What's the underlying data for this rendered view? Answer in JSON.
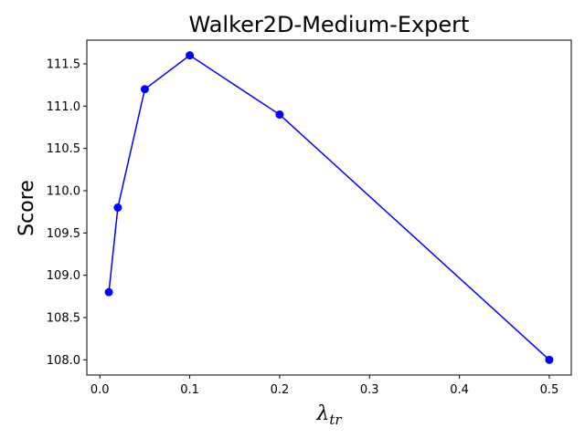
{
  "chart_data": {
    "type": "line",
    "title": "Walker2D-Medium-Expert",
    "xlabel": {
      "base": "λ",
      "sub": "tr"
    },
    "ylabel": "Score",
    "x": [
      0.01,
      0.02,
      0.05,
      0.1,
      0.2,
      0.5
    ],
    "series": [
      {
        "values": [
          108.8,
          109.8,
          111.2,
          111.6,
          110.9,
          108.0
        ],
        "color": "#0000ff",
        "marker": "circle"
      }
    ],
    "xlim": [
      -0.0145,
      0.5245
    ],
    "ylim": [
      107.82,
      111.78
    ],
    "xticks": [
      0.0,
      0.1,
      0.2,
      0.3,
      0.4,
      0.5
    ],
    "xtick_labels": [
      "0.0",
      "0.1",
      "0.2",
      "0.3",
      "0.4",
      "0.5"
    ],
    "yticks": [
      108.0,
      108.5,
      109.0,
      109.5,
      110.0,
      110.5,
      111.0,
      111.5
    ],
    "ytick_labels": [
      "108.0",
      "108.5",
      "109.0",
      "109.5",
      "110.0",
      "110.5",
      "111.0",
      "111.5"
    ],
    "grid": false,
    "legend": "none"
  }
}
